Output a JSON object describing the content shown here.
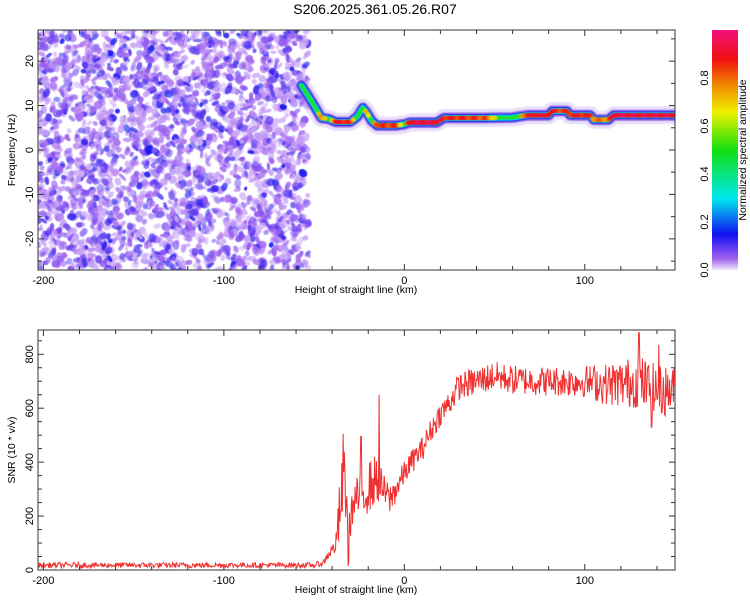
{
  "title": "S206.2025.361.05.26.R07",
  "chart_data": [
    {
      "type": "heatmap",
      "name": "spectrogram",
      "xlabel": "Height of straight line (km)",
      "ylabel": "Frequency (Hz)",
      "xlim": [
        -203,
        150
      ],
      "ylim": [
        -27,
        27
      ],
      "xticks": [
        -200,
        -100,
        0,
        100
      ],
      "xtick_labels": [
        "-200",
        "-100",
        "0",
        "100"
      ],
      "yticks": [
        -20,
        -10,
        0,
        10,
        20
      ],
      "ytick_labels": [
        "-20",
        "-10",
        "0",
        "10",
        "20"
      ],
      "noise_region_xlim": [
        -203,
        -53
      ],
      "noise_level": 0.08,
      "ridge": {
        "x": [
          -57,
          -53,
          -50,
          -46,
          -42,
          -38,
          -30,
          -26,
          -23,
          -21,
          -18,
          -15,
          -10,
          -5,
          0,
          3,
          18,
          22,
          45,
          60,
          68,
          80,
          82,
          90,
          92,
          103,
          105,
          113,
          116,
          150
        ],
        "freq": [
          14.5,
          12,
          10,
          7.2,
          7,
          6.3,
          6.3,
          7.5,
          9.5,
          8.5,
          6.5,
          5.5,
          5.5,
          5.5,
          5.8,
          6.2,
          6.2,
          7.2,
          7.2,
          7.3,
          7.8,
          7.8,
          8.8,
          8.8,
          7.8,
          7.8,
          6.8,
          6.8,
          7.8,
          7.8
        ],
        "amplitude": [
          0.55,
          0.5,
          0.45,
          0.85,
          0.6,
          0.9,
          0.9,
          0.5,
          0.55,
          0.8,
          0.6,
          0.9,
          0.85,
          0.9,
          0.6,
          0.95,
          0.95,
          0.9,
          0.85,
          0.45,
          0.9,
          0.95,
          0.9,
          0.85,
          0.9,
          0.9,
          0.8,
          0.8,
          0.95,
          0.95
        ]
      },
      "colorbar": {
        "label": "Normalized spectral amplitude",
        "range": [
          0,
          1
        ],
        "ticks": [
          0.0,
          0.2,
          0.4,
          0.6,
          0.8
        ],
        "tick_labels": [
          "0.0",
          "0.2",
          "0.4",
          "0.6",
          "0.8"
        ],
        "stops": [
          {
            "v": 0.0,
            "color": "#f4ecfc"
          },
          {
            "v": 0.05,
            "color": "#a060f0"
          },
          {
            "v": 0.15,
            "color": "#1010f0"
          },
          {
            "v": 0.3,
            "color": "#00e8f0"
          },
          {
            "v": 0.5,
            "color": "#10e010"
          },
          {
            "v": 0.66,
            "color": "#f0f000"
          },
          {
            "v": 0.78,
            "color": "#f08000"
          },
          {
            "v": 0.88,
            "color": "#f01010"
          },
          {
            "v": 1.0,
            "color": "#f0107a"
          }
        ]
      }
    },
    {
      "type": "line",
      "name": "snr",
      "xlabel": "Height of straight line (km)",
      "ylabel": "SNR (10 * v/v)",
      "xlim": [
        -203,
        150
      ],
      "ylim": [
        0,
        890
      ],
      "xticks": [
        -200,
        -100,
        0,
        100
      ],
      "xtick_labels": [
        "-200",
        "-100",
        "0",
        "100"
      ],
      "yticks": [
        0,
        200,
        400,
        600,
        800
      ],
      "ytick_labels": [
        "0",
        "200",
        "400",
        "600",
        "800"
      ],
      "color": "#f03030",
      "trend": {
        "x": [
          -203,
          -50,
          -45,
          -42,
          -38,
          -36,
          -33,
          -31,
          -30,
          -27,
          -22,
          -18,
          -15,
          -12,
          -8,
          -3,
          0,
          5,
          10,
          15,
          20,
          25,
          30,
          40,
          50,
          60,
          80,
          100,
          110,
          120,
          130,
          140,
          150
        ],
        "y": [
          18,
          18,
          25,
          60,
          90,
          200,
          380,
          60,
          200,
          260,
          290,
          320,
          340,
          300,
          260,
          320,
          360,
          410,
          450,
          520,
          580,
          620,
          680,
          700,
          720,
          705,
          700,
          700,
          690,
          690,
          700,
          660,
          670
        ],
        "noise": [
          10,
          10,
          12,
          20,
          30,
          120,
          150,
          80,
          80,
          80,
          90,
          100,
          90,
          60,
          60,
          50,
          45,
          45,
          45,
          45,
          45,
          50,
          50,
          55,
          55,
          55,
          55,
          60,
          75,
          90,
          100,
          100,
          90
        ]
      },
      "spikes": [
        {
          "x": -34,
          "y": 505
        },
        {
          "x": -24,
          "y": 495
        },
        {
          "x": -14,
          "y": 650
        },
        {
          "x": 130,
          "y": 880
        },
        {
          "x": 137,
          "y": 530
        },
        {
          "x": 141,
          "y": 835
        }
      ]
    }
  ]
}
